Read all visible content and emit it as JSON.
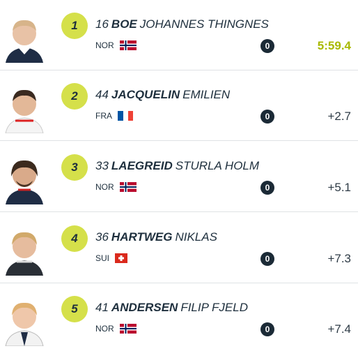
{
  "rows": [
    {
      "rank": 1,
      "bib": 16,
      "last": "BOE",
      "first": "JOHANNES THINGNES",
      "nation": "NOR",
      "penalties": 0,
      "result": "5:59.4"
    },
    {
      "rank": 2,
      "bib": 44,
      "last": "JACQUELIN",
      "first": "EMILIEN",
      "nation": "FRA",
      "penalties": 0,
      "result": "+2.7"
    },
    {
      "rank": 3,
      "bib": 33,
      "last": "LAEGREID",
      "first": "STURLA HOLM",
      "nation": "NOR",
      "penalties": 0,
      "result": "+5.1"
    },
    {
      "rank": 4,
      "bib": 36,
      "last": "HARTWEG",
      "first": "NIKLAS",
      "nation": "SUI",
      "penalties": 0,
      "result": "+7.3"
    },
    {
      "rank": 5,
      "bib": 41,
      "last": "ANDERSEN",
      "first": "FILIP FJELD",
      "nation": "NOR",
      "penalties": 0,
      "result": "+7.4"
    }
  ]
}
